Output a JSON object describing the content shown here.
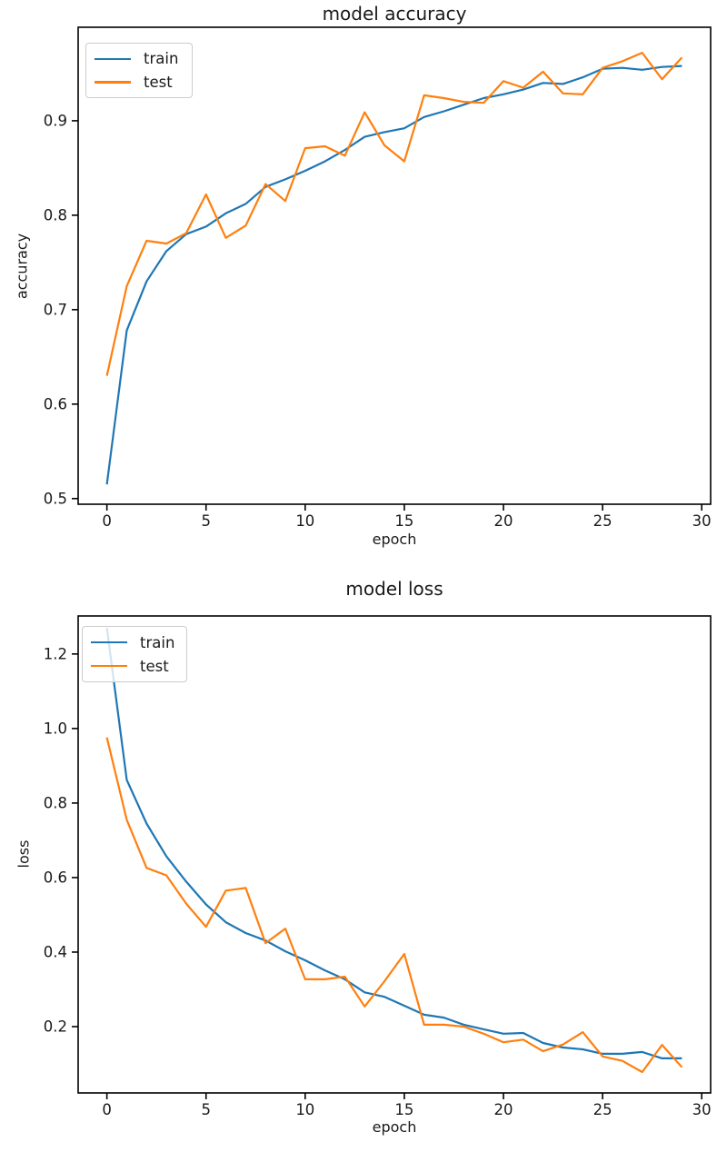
{
  "colors": {
    "train": "#1f77b4",
    "test": "#ff7f0e",
    "spine": "#000000",
    "text": "#1a1a1a",
    "legend_border": "#cccccc",
    "background": "#ffffff"
  },
  "chart_data": [
    {
      "type": "line",
      "title": "model accuracy",
      "xlabel": "epoch",
      "ylabel": "accuracy",
      "grid": false,
      "legend_position": "upper left",
      "legend_labels": [
        "train",
        "test"
      ],
      "x": [
        0,
        1,
        2,
        3,
        4,
        5,
        6,
        7,
        8,
        9,
        10,
        11,
        12,
        13,
        14,
        15,
        16,
        17,
        18,
        19,
        20,
        21,
        22,
        23,
        24,
        25,
        26,
        27,
        28,
        29
      ],
      "xlim": [
        -1.45,
        30.45
      ],
      "ylim": [
        0.494,
        0.999
      ],
      "xticks": [
        0,
        5,
        10,
        15,
        20,
        25,
        30
      ],
      "yticks": [
        0.5,
        0.6,
        0.7,
        0.8,
        0.9
      ],
      "ytick_decimals": 1,
      "series": [
        {
          "name": "train",
          "color": "train",
          "values": [
            0.515,
            0.678,
            0.73,
            0.762,
            0.78,
            0.788,
            0.802,
            0.812,
            0.83,
            0.838,
            0.847,
            0.857,
            0.869,
            0.883,
            0.888,
            0.892,
            0.904,
            0.91,
            0.917,
            0.924,
            0.928,
            0.933,
            0.94,
            0.939,
            0.946,
            0.955,
            0.956,
            0.954,
            0.957,
            0.958
          ]
        },
        {
          "name": "test",
          "color": "test",
          "values": [
            0.63,
            0.725,
            0.773,
            0.77,
            0.781,
            0.822,
            0.776,
            0.789,
            0.833,
            0.815,
            0.871,
            0.873,
            0.863,
            0.909,
            0.874,
            0.857,
            0.927,
            0.924,
            0.92,
            0.919,
            0.942,
            0.935,
            0.952,
            0.929,
            0.928,
            0.956,
            0.963,
            0.972,
            0.944,
            0.967
          ]
        }
      ]
    },
    {
      "type": "line",
      "title": "model loss",
      "xlabel": "epoch",
      "ylabel": "loss",
      "grid": false,
      "legend_position": "upper left",
      "legend_labels": [
        "train",
        "test"
      ],
      "x": [
        0,
        1,
        2,
        3,
        4,
        5,
        6,
        7,
        8,
        9,
        10,
        11,
        12,
        13,
        14,
        15,
        16,
        17,
        18,
        19,
        20,
        21,
        22,
        23,
        24,
        25,
        26,
        27,
        28,
        29
      ],
      "xlim": [
        -1.45,
        30.45
      ],
      "ylim": [
        0.022,
        1.302
      ],
      "xticks": [
        0,
        5,
        10,
        15,
        20,
        25,
        30
      ],
      "yticks": [
        0.2,
        0.4,
        0.6,
        0.8,
        1.0,
        1.2
      ],
      "ytick_decimals": 1,
      "series": [
        {
          "name": "train",
          "color": "train",
          "values": [
            1.27,
            0.862,
            0.745,
            0.657,
            0.589,
            0.528,
            0.48,
            0.451,
            0.431,
            0.402,
            0.378,
            0.351,
            0.327,
            0.292,
            0.28,
            0.256,
            0.232,
            0.224,
            0.205,
            0.193,
            0.181,
            0.183,
            0.156,
            0.144,
            0.139,
            0.127,
            0.127,
            0.132,
            0.115,
            0.115
          ]
        },
        {
          "name": "test",
          "color": "test",
          "values": [
            0.976,
            0.755,
            0.626,
            0.606,
            0.53,
            0.468,
            0.565,
            0.572,
            0.424,
            0.463,
            0.327,
            0.327,
            0.334,
            0.254,
            0.322,
            0.395,
            0.205,
            0.205,
            0.2,
            0.181,
            0.158,
            0.165,
            0.134,
            0.152,
            0.185,
            0.12,
            0.108,
            0.078,
            0.151,
            0.091
          ]
        }
      ]
    }
  ]
}
